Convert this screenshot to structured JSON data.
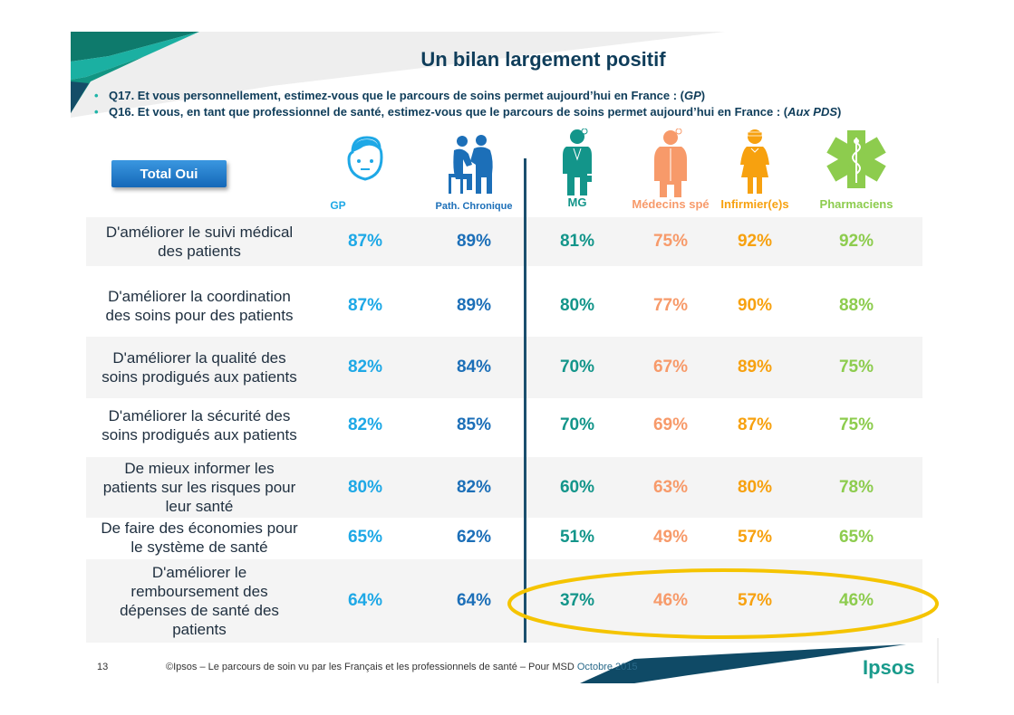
{
  "slide": {
    "title": "Un bilan largement positif",
    "questions": [
      {
        "bullet": "•",
        "text": "Q17. Et vous personnellement, estimez-vous que le parcours de soins permet aujourd’hui en France : (",
        "emph": "GP",
        "close": ")"
      },
      {
        "bullet": "•",
        "text": "Q16. Et vous, en tant que professionnel de santé, estimez-vous que le parcours de soins permet aujourd’hui en France : (",
        "emph": "Aux PDS",
        "close": ")"
      }
    ],
    "badge": "Total Oui",
    "footer": {
      "page_number": "13",
      "text": "©Ipsos – Le parcours de soin vu par les Français et les professionnels de santé – Pour MSD",
      "date": " Octobre 2015",
      "logo": "Ipsos"
    }
  },
  "chart_data": {
    "type": "table",
    "title": "Un bilan largement positif",
    "unit": "%",
    "columns": [
      {
        "key": "GP",
        "label": "GP",
        "color": "#1ea8e6",
        "icon": "boy-face-icon"
      },
      {
        "key": "PC",
        "label": "Path. Chronique",
        "color": "#1c6fb8",
        "icon": "patient-doctor-icon"
      },
      {
        "key": "MG",
        "label": "MG",
        "color": "#13958a",
        "icon": "doctor-icon"
      },
      {
        "key": "MS",
        "label": "Médecins spé",
        "color": "#f79a6a",
        "icon": "specialist-icon"
      },
      {
        "key": "INF",
        "label": "Infirmier(e)s",
        "color": "#f7a10f",
        "icon": "nurse-icon"
      },
      {
        "key": "PH",
        "label": "Pharmaciens",
        "color": "#8dcc4e",
        "icon": "caduceus-star-icon"
      }
    ],
    "rows": [
      {
        "label": [
          "D'améliorer le suivi médical",
          "des patients"
        ],
        "values": [
          87,
          89,
          81,
          75,
          92,
          92
        ]
      },
      {
        "label": [
          "D'améliorer la coordination",
          "des soins pour des patients"
        ],
        "values": [
          87,
          89,
          80,
          77,
          90,
          88
        ]
      },
      {
        "label": [
          "D'améliorer la qualité des",
          "soins prodigués aux patients"
        ],
        "values": [
          82,
          84,
          70,
          67,
          89,
          75
        ]
      },
      {
        "label": [
          "D'améliorer la sécurité des",
          "soins prodigués aux patients"
        ],
        "values": [
          82,
          85,
          70,
          69,
          87,
          75
        ]
      },
      {
        "label": [
          "De mieux informer les",
          "patients sur les risques pour",
          "leur santé"
        ],
        "values": [
          80,
          82,
          60,
          63,
          80,
          78
        ]
      },
      {
        "label": [
          "De faire des économies pour",
          "le système de santé"
        ],
        "values": [
          65,
          62,
          51,
          49,
          57,
          65
        ]
      },
      {
        "label": [
          "D'améliorer le",
          "remboursement des",
          "dépenses de santé des",
          "patients"
        ],
        "values": [
          64,
          64,
          37,
          46,
          57,
          46
        ],
        "highlighted_columns": [
          "MG",
          "MS",
          "INF",
          "PH"
        ]
      }
    ],
    "highlight_color": "#f5c400"
  }
}
